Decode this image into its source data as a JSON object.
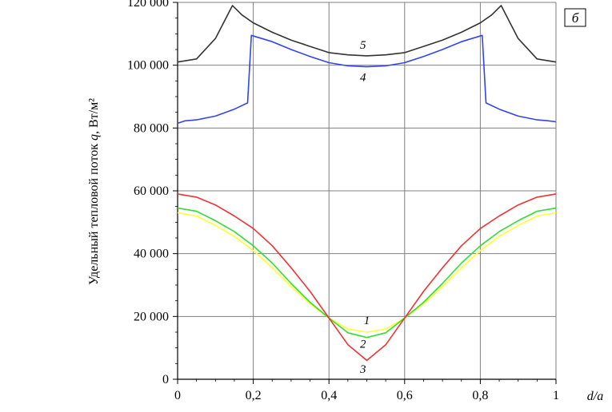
{
  "chart_data": {
    "type": "line",
    "panel_label": "б",
    "ylabel_parts": [
      "Удельный тепловой поток ",
      "q",
      ", Вт/м²"
    ],
    "xlabel": "d/a",
    "xlim": [
      0,
      1
    ],
    "ylim": [
      0,
      120000
    ],
    "x_ticks": [
      0,
      0.2,
      0.4,
      0.6,
      0.8,
      1
    ],
    "x_tick_labels": [
      "0",
      "0,2",
      "0,4",
      "0,6",
      "0,8",
      "1"
    ],
    "y_ticks": [
      0,
      20000,
      40000,
      60000,
      80000,
      100000,
      120000
    ],
    "y_tick_labels": [
      "0",
      "20 000",
      "40 000",
      "60 000",
      "80 000",
      "100 000",
      "120 000"
    ],
    "grid": true,
    "colors": {
      "axis": "#000000",
      "grid": "#7f7f7f"
    },
    "series": [
      {
        "name": "1",
        "color": "#ffff33",
        "x": [
          0,
          0.05,
          0.1,
          0.15,
          0.2,
          0.25,
          0.3,
          0.35,
          0.4,
          0.45,
          0.5,
          0.55,
          0.6,
          0.65,
          0.7,
          0.75,
          0.8,
          0.85,
          0.9,
          0.95,
          1
        ],
        "y": [
          53000,
          52000,
          49000,
          45500,
          41000,
          35500,
          29500,
          24000,
          19500,
          16000,
          15000,
          16000,
          19500,
          24000,
          29500,
          35500,
          41000,
          45500,
          49000,
          52000,
          53000
        ],
        "label_pos": [
          0.5,
          17500
        ]
      },
      {
        "name": "2",
        "color": "#33dd33",
        "x": [
          0,
          0.05,
          0.1,
          0.15,
          0.2,
          0.25,
          0.3,
          0.35,
          0.4,
          0.45,
          0.5,
          0.55,
          0.6,
          0.65,
          0.7,
          0.75,
          0.8,
          0.85,
          0.9,
          0.95,
          1
        ],
        "y": [
          54500,
          53500,
          50500,
          47000,
          42500,
          37000,
          30500,
          24500,
          19500,
          14800,
          13300,
          14800,
          19500,
          24500,
          30500,
          37000,
          42500,
          47000,
          50500,
          53500,
          54500
        ],
        "label_pos": [
          0.49,
          10000
        ]
      },
      {
        "name": "3",
        "color": "#ee3333",
        "x": [
          0,
          0.05,
          0.1,
          0.15,
          0.2,
          0.25,
          0.3,
          0.35,
          0.4,
          0.45,
          0.5,
          0.55,
          0.6,
          0.65,
          0.7,
          0.75,
          0.8,
          0.85,
          0.9,
          0.95,
          1
        ],
        "y": [
          59000,
          58000,
          55500,
          52000,
          48000,
          42500,
          35500,
          28000,
          19500,
          11000,
          6000,
          11000,
          19500,
          28000,
          35500,
          42500,
          48000,
          52000,
          55500,
          58000,
          59000
        ],
        "label_pos": [
          0.49,
          2000
        ]
      },
      {
        "name": "4",
        "color": "#3344ee",
        "x": [
          0,
          0.02,
          0.05,
          0.1,
          0.15,
          0.185,
          0.195,
          0.25,
          0.3,
          0.35,
          0.4,
          0.45,
          0.5,
          0.55,
          0.6,
          0.65,
          0.7,
          0.75,
          0.805,
          0.815,
          0.85,
          0.9,
          0.95,
          0.98,
          1
        ],
        "y": [
          81500,
          82300,
          82600,
          83800,
          86000,
          88000,
          109500,
          107500,
          105000,
          102800,
          100800,
          99800,
          99500,
          99800,
          100800,
          102800,
          105000,
          107500,
          109500,
          88000,
          86000,
          83800,
          82600,
          82300,
          82000
        ],
        "label_pos": [
          0.49,
          95000
        ]
      },
      {
        "name": "5",
        "color": "#333333",
        "x": [
          0,
          0.05,
          0.1,
          0.145,
          0.17,
          0.2,
          0.25,
          0.3,
          0.35,
          0.4,
          0.45,
          0.5,
          0.55,
          0.6,
          0.65,
          0.7,
          0.75,
          0.8,
          0.83,
          0.855,
          0.9,
          0.95,
          1
        ],
        "y": [
          101000,
          102000,
          108500,
          119000,
          116000,
          113500,
          110500,
          108000,
          106000,
          104000,
          103300,
          103000,
          103300,
          104000,
          106000,
          108000,
          110500,
          113500,
          116000,
          119000,
          108500,
          102000,
          101000
        ],
        "label_pos": [
          0.49,
          105200
        ]
      }
    ]
  }
}
